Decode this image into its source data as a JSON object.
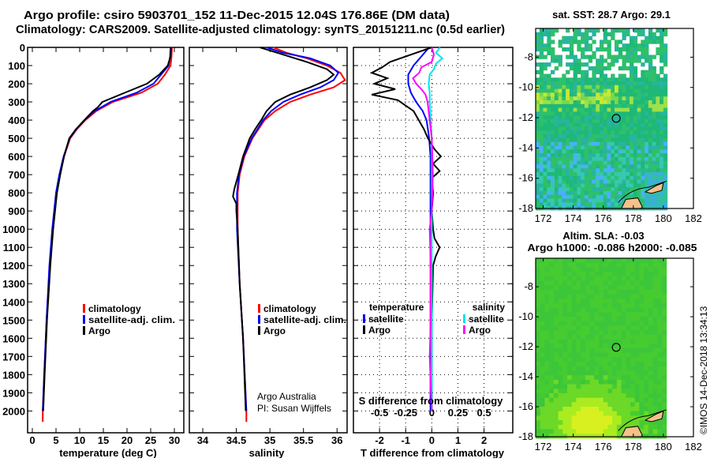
{
  "title_line1": "Argo profile: csiro 5903701_152 11-Dec-2015 12.04S 176.86E (DM data)",
  "title_line2": "Climatology: CARS2009. Satellite-adjusted climatology: synTS_20151211.nc (0.5d earlier)",
  "credit_line1": "Argo Australia",
  "credit_line2": "PI: Susan Wijffels",
  "copyright": "©IMOS 14-Dec-2018 13:34:13",
  "colors": {
    "climatology": "#ff0000",
    "satellite": "#0000ff",
    "argo": "#000000",
    "sal_satellite": "#00e5ee",
    "sal_argo": "#ff00ff"
  },
  "chart_data": [
    {
      "type": "line",
      "name": "temperature-profile",
      "xlabel": "temperature (deg C)",
      "ylabel": "",
      "xlim": [
        -1,
        32
      ],
      "ylim": [
        2120,
        0
      ],
      "xticks": [
        0,
        5,
        10,
        15,
        20,
        25,
        30
      ],
      "xtick_labels": [
        "0",
        "5",
        "10",
        "15",
        "20",
        "25",
        "30"
      ],
      "yticks": [
        0,
        100,
        200,
        300,
        400,
        500,
        600,
        700,
        800,
        900,
        1000,
        1100,
        1200,
        1300,
        1400,
        1500,
        1600,
        1700,
        1800,
        1900,
        2000
      ],
      "yticks_labels": [
        "0",
        "100",
        "200",
        "300",
        "400",
        "500",
        "600",
        "700",
        "800",
        "900",
        "1000",
        "1100",
        "1200",
        "1300",
        "1400",
        "1500",
        "1600",
        "1700",
        "1800",
        "1900",
        "2000"
      ],
      "legend": [
        "climatology",
        "satellite-adj. clim.",
        "Argo"
      ],
      "legend_placement": "lower-right",
      "series": [
        {
          "name": "climatology",
          "color": "#ff0000",
          "depth": [
            0,
            50,
            100,
            150,
            200,
            250,
            300,
            350,
            400,
            450,
            500,
            600,
            700,
            800,
            1000,
            1200,
            1500,
            1800,
            2000,
            2060
          ],
          "values": [
            29.5,
            29.4,
            29.2,
            28,
            26.5,
            23,
            17,
            13.5,
            11.2,
            9.4,
            8,
            6.7,
            5.8,
            5.1,
            4.3,
            3.7,
            3,
            2.5,
            2.2,
            2.2
          ]
        },
        {
          "name": "satellite-adj. clim.",
          "color": "#0000ff",
          "depth": [
            0,
            50,
            100,
            150,
            200,
            250,
            300,
            350,
            400,
            450,
            500,
            600,
            700,
            800,
            1000,
            1200,
            1500,
            1800,
            2000
          ],
          "values": [
            29.2,
            29.1,
            28.8,
            27.2,
            25.6,
            22,
            16.5,
            13.2,
            11,
            9.3,
            7.9,
            6.6,
            5.7,
            5,
            4.2,
            3.6,
            3,
            2.5,
            2.2
          ]
        },
        {
          "name": "Argo",
          "color": "#000000",
          "depth": [
            0,
            50,
            100,
            150,
            200,
            250,
            300,
            330,
            350,
            400,
            450,
            500,
            600,
            700,
            800,
            1000,
            1200,
            1500,
            1800,
            2000
          ],
          "values": [
            29.3,
            29.2,
            28.6,
            26.8,
            24.2,
            19.5,
            14.8,
            13.8,
            12.8,
            11,
            9.2,
            7.8,
            6.7,
            5.9,
            5.2,
            4.4,
            3.8,
            3.1,
            2.6,
            2.3
          ]
        }
      ]
    },
    {
      "type": "line",
      "name": "salinity-profile",
      "xlabel": "salinity",
      "xlim": [
        33.8,
        36.15
      ],
      "ylim": [
        2120,
        0
      ],
      "xticks": [
        34,
        34.5,
        35,
        35.5,
        36
      ],
      "xtick_labels": [
        "34",
        "34.5",
        "35",
        "35.5",
        "36"
      ],
      "legend": [
        "climatology",
        "satellite-adj. clim.",
        "Argo"
      ],
      "legend_placement": "lower-right",
      "series": [
        {
          "name": "climatology",
          "color": "#ff0000",
          "depth": [
            0,
            30,
            60,
            100,
            140,
            180,
            220,
            260,
            300,
            350,
            400,
            500,
            600,
            700,
            800,
            1000,
            1300,
            1600,
            2000,
            2060
          ],
          "values": [
            35.05,
            35.25,
            35.55,
            35.85,
            36.05,
            36.12,
            35.95,
            35.6,
            35.3,
            35.08,
            34.92,
            34.74,
            34.62,
            34.55,
            34.52,
            34.52,
            34.55,
            34.6,
            34.65,
            34.65
          ]
        },
        {
          "name": "satellite-adj. clim.",
          "color": "#0000ff",
          "depth": [
            0,
            30,
            60,
            100,
            140,
            180,
            220,
            260,
            300,
            350,
            400,
            500,
            600,
            700,
            800,
            1000,
            1300,
            1600,
            2000
          ],
          "values": [
            34.95,
            35.2,
            35.6,
            35.9,
            36.02,
            35.95,
            35.75,
            35.45,
            35.2,
            35.02,
            34.9,
            34.73,
            34.61,
            34.54,
            34.51,
            34.51,
            34.55,
            34.6,
            34.65
          ]
        },
        {
          "name": "Argo",
          "color": "#000000",
          "depth": [
            0,
            40,
            80,
            120,
            150,
            180,
            220,
            260,
            300,
            350,
            400,
            450,
            500,
            600,
            700,
            780,
            820,
            860,
            900,
            1000,
            1300,
            1600,
            2000
          ],
          "values": [
            34.85,
            35.2,
            35.55,
            35.85,
            35.95,
            35.85,
            35.6,
            35.3,
            35.08,
            34.95,
            34.87,
            34.78,
            34.7,
            34.6,
            34.53,
            34.47,
            34.45,
            34.5,
            34.5,
            34.52,
            34.55,
            34.6,
            34.64
          ]
        }
      ]
    },
    {
      "type": "line",
      "name": "difference-profile",
      "xlabel": "T difference from climatology",
      "x2label": "S difference from climatology",
      "xlim": [
        -3.0,
        3.1
      ],
      "x2lim": [
        -0.75,
        0.775
      ],
      "ylim": [
        2120,
        0
      ],
      "xticks": [
        -2,
        -1,
        0,
        1,
        2
      ],
      "xtick_labels": [
        "-2",
        "-1",
        "0",
        "1",
        "2"
      ],
      "x2ticks": [
        -0.5,
        -0.25,
        0,
        0.25,
        0.5
      ],
      "x2tick_labels": [
        "-0.5",
        "-0.25",
        "0",
        "0.25",
        "0.5"
      ],
      "grid": true,
      "legend_temperature": {
        "heading": "temperature",
        "items": [
          "satellite",
          "Argo"
        ]
      },
      "legend_salinity": {
        "heading": "salinity",
        "items": [
          "satellite",
          "Argo"
        ]
      },
      "legend_placement": "lower-center",
      "series": [
        {
          "name": "T satellite",
          "axis": "T",
          "color": "#0000ff",
          "depth": [
            0,
            50,
            100,
            150,
            200,
            250,
            300,
            350,
            400,
            450,
            500,
            600,
            700,
            800,
            1000,
            1200,
            1500,
            2000
          ],
          "values": [
            -0.1,
            -0.4,
            -0.7,
            -0.9,
            -0.9,
            -0.8,
            -0.6,
            -0.35,
            -0.2,
            -0.15,
            -0.1,
            -0.05,
            -0.05,
            -0.05,
            -0.05,
            -0.05,
            -0.05,
            -0.05
          ]
        },
        {
          "name": "T Argo",
          "axis": "T",
          "color": "#000000",
          "depth": [
            0,
            40,
            80,
            110,
            140,
            170,
            200,
            230,
            260,
            290,
            320,
            350,
            400,
            450,
            500,
            560,
            600,
            640,
            680,
            720,
            800,
            900,
            1000,
            1050,
            1100,
            1150,
            1200,
            1500,
            2000
          ],
          "values": [
            0,
            -0.8,
            -1.6,
            -1.9,
            -2.3,
            -1.7,
            -2.2,
            -1.4,
            -2.3,
            -1.3,
            -1.0,
            -0.7,
            -0.5,
            -0.3,
            -0.15,
            0.1,
            0.35,
            0.05,
            0.3,
            0.0,
            0.05,
            0.0,
            0.05,
            0.1,
            0.3,
            0.15,
            0.05,
            0.0,
            0.0
          ]
        },
        {
          "name": "S satellite",
          "axis": "S",
          "color": "#00e5ee",
          "depth": [
            0,
            30,
            60,
            90,
            120,
            150,
            200,
            250,
            300,
            400,
            500,
            700,
            900,
            1200,
            1600,
            2000
          ],
          "values": [
            0.08,
            0.04,
            0.1,
            0.04,
            0.02,
            -0.02,
            -0.03,
            -0.02,
            -0.02,
            -0.01,
            0.0,
            0.0,
            0.0,
            0.0,
            0.0,
            0.0
          ]
        },
        {
          "name": "S Argo",
          "axis": "S",
          "color": "#ff00ff",
          "depth": [
            0,
            40,
            80,
            110,
            140,
            170,
            200,
            230,
            260,
            300,
            400,
            500,
            700,
            900,
            1000,
            1200,
            1500,
            1700,
            2000
          ],
          "values": [
            0.0,
            0.02,
            0.0,
            -0.1,
            -0.12,
            -0.18,
            -0.15,
            -0.1,
            -0.06,
            -0.04,
            -0.02,
            0.0,
            0.01,
            0.0,
            -0.02,
            -0.01,
            -0.01,
            -0.02,
            0.0
          ]
        }
      ]
    },
    {
      "type": "heatmap",
      "name": "sst-map",
      "title": "sat. SST: 28.7 Argo: 29.1",
      "xlim": [
        171.5,
        182
      ],
      "ylim": [
        -18,
        -6.1
      ],
      "xticks": [
        172,
        174,
        176,
        178,
        180,
        182
      ],
      "xtick_labels": [
        "172",
        "174",
        "176",
        "178",
        "180",
        "182"
      ],
      "yticks": [
        -8,
        -10,
        -12,
        -14,
        -16,
        -18
      ],
      "ytick_labels": [
        "-8",
        "-10",
        "-12",
        "-14",
        "-16",
        "-18"
      ],
      "profile_location": [
        176.86,
        -12.04
      ]
    },
    {
      "type": "heatmap",
      "name": "sla-map",
      "title": "Altim. SLA: -0.03",
      "subtitle": "Argo h1000: -0.086 h2000: -0.085",
      "xlim": [
        171.5,
        182
      ],
      "ylim": [
        -18,
        -6.1
      ],
      "xticks": [
        172,
        174,
        176,
        178,
        180,
        182
      ],
      "xtick_labels": [
        "172",
        "174",
        "176",
        "178",
        "180",
        "182"
      ],
      "yticks": [
        -8,
        -10,
        -12,
        -14,
        -16,
        -18
      ],
      "ytick_labels": [
        "-8",
        "-10",
        "-12",
        "-14",
        "-16",
        "-18"
      ],
      "profile_location": [
        176.86,
        -12.04
      ]
    }
  ]
}
